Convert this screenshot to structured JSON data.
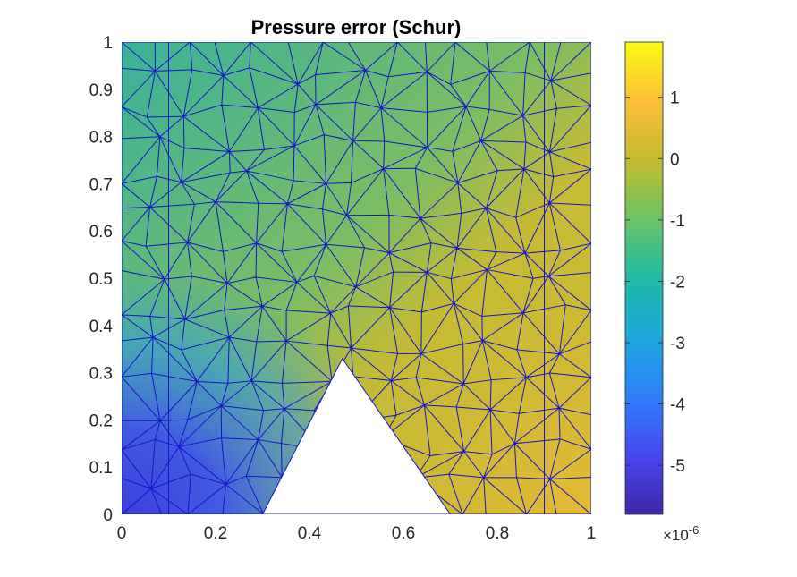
{
  "chart_data": {
    "type": "heatmap",
    "title": "Pressure error (Schur)",
    "subtype": "triangular mesh with interpolated colour field",
    "xlabel": "",
    "ylabel": "",
    "xlim": [
      0,
      1
    ],
    "ylim": [
      0,
      1
    ],
    "x_ticks": [
      "0",
      "0.2",
      "0.4",
      "0.6",
      "0.8",
      "1"
    ],
    "y_ticks": [
      "0",
      "0.1",
      "0.2",
      "0.3",
      "0.4",
      "0.5",
      "0.6",
      "0.7",
      "0.8",
      "0.9",
      "1"
    ],
    "domain_hole": {
      "shape": "triangle",
      "vertices": [
        [
          0.3,
          0
        ],
        [
          0.47,
          0.33
        ],
        [
          0.7,
          0
        ]
      ]
    },
    "grid": false,
    "mesh_edge_color": "#1414c8",
    "colormap": "parula",
    "colorbar": {
      "position": "right",
      "range": [
        -5.8,
        1.9
      ],
      "ticks": [
        "1",
        "0",
        "-1",
        "-2",
        "-3",
        "-4",
        "-5"
      ],
      "tick_values": [
        1,
        0,
        -1,
        -2,
        -3,
        -4,
        -5
      ],
      "multiplier_base": "×10",
      "multiplier_exponent": "-6"
    },
    "field_samples": [
      {
        "x": 0.2,
        "y": 0.2,
        "value": -4.8
      },
      {
        "x": 0.1,
        "y": 0.5,
        "value": -2.0
      },
      {
        "x": 0.1,
        "y": 0.9,
        "value": -1.0
      },
      {
        "x": 0.4,
        "y": 0.8,
        "value": -0.7
      },
      {
        "x": 0.75,
        "y": 0.85,
        "value": 0.4
      },
      {
        "x": 0.75,
        "y": 0.15,
        "value": 0.9
      },
      {
        "x": 0.6,
        "y": 0.4,
        "value": 0.4
      },
      {
        "x": 0.95,
        "y": 0.5,
        "value": 0.3
      }
    ]
  }
}
